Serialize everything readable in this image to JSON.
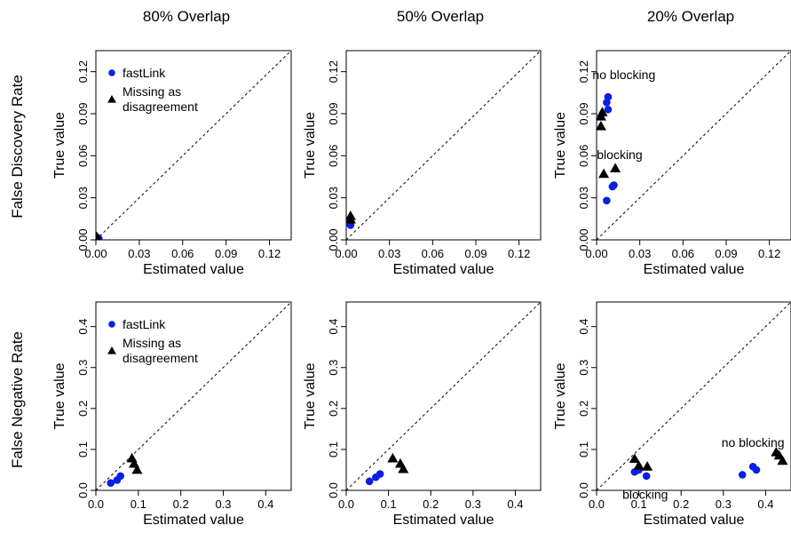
{
  "columns": [
    "80% Overlap",
    "50% Overlap",
    "20% Overlap"
  ],
  "rows": [
    "False Discovery Rate",
    "False Negative Rate"
  ],
  "legend": {
    "fastlink": "fastLink",
    "missing_line1": "Missing as",
    "missing_line2": "disagreement"
  },
  "colors": {
    "fastlink": "#0a1ee6",
    "missing": "#000000",
    "diagonal": "#000000"
  },
  "chart_data": [
    {
      "type": "scatter",
      "title": "80% Overlap",
      "row": "False Discovery Rate",
      "xlabel": "Estimated value",
      "ylabel": "True value",
      "xlim": [
        0,
        0.135
      ],
      "ylim": [
        0,
        0.135
      ],
      "xticks": [
        "0.00",
        "0.03",
        "0.06",
        "0.09",
        "0.12"
      ],
      "xtick_values": [
        0,
        0.03,
        0.06,
        0.09,
        0.12
      ],
      "yticks": [
        "0.00",
        "0.03",
        "0.06",
        "0.09",
        "0.12"
      ],
      "ytick_values": [
        0,
        0.03,
        0.06,
        0.09,
        0.12
      ],
      "legend": true,
      "annotations": [],
      "series": [
        {
          "name": "fastLink",
          "marker": "circle",
          "x": [
            0.0015,
            0.002
          ],
          "y": [
            0.0015,
            0.001
          ]
        },
        {
          "name": "Missing as disagreement",
          "marker": "triangle",
          "x": [
            0.0005,
            0.001
          ],
          "y": [
            0.002,
            0.0015
          ]
        }
      ]
    },
    {
      "type": "scatter",
      "title": "50% Overlap",
      "row": "False Discovery Rate",
      "xlabel": "Estimated value",
      "ylabel": "True value",
      "xlim": [
        0,
        0.135
      ],
      "ylim": [
        0,
        0.135
      ],
      "xticks": [
        "0.00",
        "0.03",
        "0.06",
        "0.09",
        "0.12"
      ],
      "xtick_values": [
        0,
        0.03,
        0.06,
        0.09,
        0.12
      ],
      "yticks": [
        "0.00",
        "0.03",
        "0.06",
        "0.09",
        "0.12"
      ],
      "ytick_values": [
        0,
        0.03,
        0.06,
        0.09,
        0.12
      ],
      "legend": false,
      "annotations": [],
      "series": [
        {
          "name": "fastLink",
          "marker": "circle",
          "x": [
            0.003,
            0.003
          ],
          "y": [
            0.0105,
            0.0125
          ]
        },
        {
          "name": "Missing as disagreement",
          "marker": "triangle",
          "x": [
            0.003,
            0.003
          ],
          "y": [
            0.0145,
            0.017
          ]
        }
      ]
    },
    {
      "type": "scatter",
      "title": "20% Overlap",
      "row": "False Discovery Rate",
      "xlabel": "Estimated value",
      "ylabel": "True value",
      "xlim": [
        0,
        0.135
      ],
      "ylim": [
        0,
        0.135
      ],
      "xticks": [
        "0.00",
        "0.03",
        "0.06",
        "0.09",
        "0.12"
      ],
      "xtick_values": [
        0,
        0.03,
        0.06,
        0.09,
        0.12
      ],
      "yticks": [
        "0.00",
        "0.03",
        "0.06",
        "0.09",
        "0.12"
      ],
      "ytick_values": [
        0,
        0.03,
        0.06,
        0.09,
        0.12
      ],
      "legend": false,
      "annotations": [
        {
          "text": "no blocking",
          "x": 0.019,
          "y": 0.118
        },
        {
          "text": "blocking",
          "x": 0.016,
          "y": 0.061
        }
      ],
      "series": [
        {
          "name": "fastLink",
          "marker": "circle",
          "x": [
            0.008,
            0.007,
            0.008,
            0.011,
            0.012,
            0.007
          ],
          "y": [
            0.102,
            0.098,
            0.093,
            0.038,
            0.039,
            0.028
          ]
        },
        {
          "name": "Missing as disagreement",
          "marker": "triangle",
          "x": [
            0.003,
            0.004,
            0.003,
            0.013,
            0.005
          ],
          "y": [
            0.088,
            0.091,
            0.081,
            0.051,
            0.047
          ]
        }
      ]
    },
    {
      "type": "scatter",
      "title": "80% Overlap",
      "row": "False Negative Rate",
      "xlabel": "Estimated value",
      "ylabel": "True value",
      "xlim": [
        0,
        0.46
      ],
      "ylim": [
        0,
        0.46
      ],
      "xticks": [
        "0.0",
        "0.1",
        "0.2",
        "0.3",
        "0.4"
      ],
      "xtick_values": [
        0,
        0.1,
        0.2,
        0.3,
        0.4
      ],
      "yticks": [
        "0.0",
        "0.1",
        "0.2",
        "0.3",
        "0.4"
      ],
      "ytick_values": [
        0,
        0.1,
        0.2,
        0.3,
        0.4
      ],
      "legend": true,
      "annotations": [],
      "series": [
        {
          "name": "fastLink",
          "marker": "circle",
          "x": [
            0.035,
            0.05,
            0.058
          ],
          "y": [
            0.018,
            0.025,
            0.035
          ]
        },
        {
          "name": "Missing as disagreement",
          "marker": "triangle",
          "x": [
            0.085,
            0.09,
            0.097
          ],
          "y": [
            0.078,
            0.065,
            0.05
          ]
        }
      ]
    },
    {
      "type": "scatter",
      "title": "50% Overlap",
      "row": "False Negative Rate",
      "xlabel": "Estimated value",
      "ylabel": "True value",
      "xlim": [
        0,
        0.46
      ],
      "ylim": [
        0,
        0.46
      ],
      "xticks": [
        "0.0",
        "0.1",
        "0.2",
        "0.3",
        "0.4"
      ],
      "xtick_values": [
        0,
        0.1,
        0.2,
        0.3,
        0.4
      ],
      "yticks": [
        "0.0",
        "0.1",
        "0.2",
        "0.3",
        "0.4"
      ],
      "ytick_values": [
        0,
        0.1,
        0.2,
        0.3,
        0.4
      ],
      "legend": false,
      "annotations": [],
      "series": [
        {
          "name": "fastLink",
          "marker": "circle",
          "x": [
            0.055,
            0.07,
            0.08
          ],
          "y": [
            0.022,
            0.032,
            0.04
          ]
        },
        {
          "name": "Missing as disagreement",
          "marker": "triangle",
          "x": [
            0.11,
            0.128,
            0.135
          ],
          "y": [
            0.078,
            0.065,
            0.052
          ]
        }
      ]
    },
    {
      "type": "scatter",
      "title": "20% Overlap",
      "row": "False Negative Rate",
      "xlabel": "Estimated value",
      "ylabel": "True value",
      "xlim": [
        0,
        0.46
      ],
      "ylim": [
        0,
        0.46
      ],
      "xticks": [
        "0.0",
        "0.1",
        "0.2",
        "0.3",
        "0.4"
      ],
      "xtick_values": [
        0,
        0.1,
        0.2,
        0.3,
        0.4
      ],
      "yticks": [
        "0.0",
        "0.1",
        "0.2",
        "0.3",
        "0.4"
      ],
      "ytick_values": [
        0,
        0.1,
        0.2,
        0.3,
        0.4
      ],
      "legend": false,
      "annotations": [
        {
          "text": "no blocking",
          "x": 0.37,
          "y": 0.117
        },
        {
          "text": "blocking",
          "x": 0.115,
          "y": -0.01
        }
      ],
      "series": [
        {
          "name": "fastLink",
          "marker": "circle",
          "x": [
            0.09,
            0.1,
            0.118,
            0.345,
            0.37,
            0.378
          ],
          "y": [
            0.045,
            0.05,
            0.035,
            0.038,
            0.058,
            0.05
          ]
        },
        {
          "name": "Missing as disagreement",
          "marker": "triangle",
          "x": [
            0.09,
            0.1,
            0.12,
            0.425,
            0.432,
            0.44
          ],
          "y": [
            0.077,
            0.06,
            0.058,
            0.093,
            0.085,
            0.072
          ]
        }
      ]
    }
  ]
}
